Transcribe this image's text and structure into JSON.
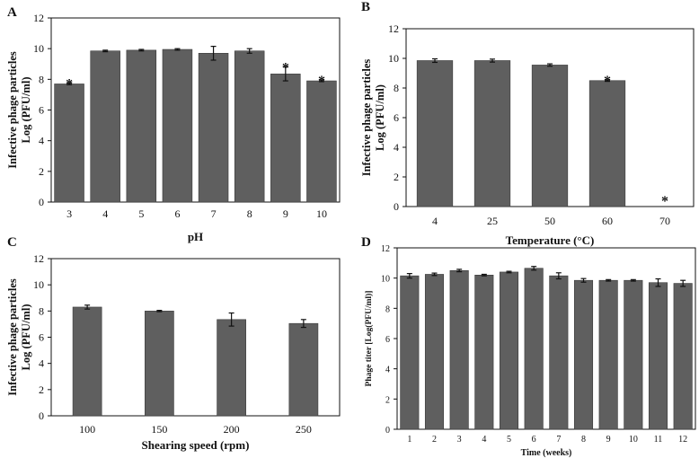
{
  "chart_data": [
    {
      "panel": "A",
      "type": "bar",
      "categories": [
        "3",
        "4",
        "5",
        "6",
        "7",
        "8",
        "9",
        "10"
      ],
      "values": [
        7.7,
        9.85,
        9.9,
        9.95,
        9.7,
        9.85,
        8.35,
        7.9
      ],
      "errors": [
        0.05,
        0.05,
        0.05,
        0.05,
        0.45,
        0.15,
        0.45,
        0.05
      ],
      "significant": [
        true,
        false,
        false,
        false,
        false,
        false,
        true,
        true
      ],
      "marker": "*",
      "title": "",
      "xlabel": "pH",
      "ylabel_lines": [
        "Infective phage particles",
        "Log (PFU/ml)"
      ],
      "ylim": [
        0,
        12
      ],
      "yticks": [
        "0",
        "2",
        "4",
        "6",
        "8",
        "10",
        "12"
      ]
    },
    {
      "panel": "B",
      "type": "bar",
      "categories": [
        "4",
        "25",
        "50",
        "60",
        "70"
      ],
      "values": [
        9.85,
        9.85,
        9.55,
        8.5,
        0
      ],
      "errors": [
        0.12,
        0.1,
        0.08,
        0.05,
        0
      ],
      "significant": [
        false,
        false,
        false,
        true,
        true
      ],
      "marker": "*",
      "title": "",
      "xlabel": "Temperature (°C)",
      "ylabel_lines": [
        "Infective phage particles",
        "Log (PFU/ml)"
      ],
      "ylim": [
        0,
        12
      ],
      "yticks": [
        "0",
        "2",
        "4",
        "6",
        "8",
        "10",
        "12"
      ]
    },
    {
      "panel": "C",
      "type": "bar",
      "categories": [
        "100",
        "150",
        "200",
        "250"
      ],
      "values": [
        8.3,
        8.0,
        7.35,
        7.05
      ],
      "errors": [
        0.15,
        0.05,
        0.5,
        0.3
      ],
      "significant": [
        false,
        false,
        false,
        false
      ],
      "marker": "*",
      "title": "",
      "xlabel": "Shearing speed (rpm)",
      "ylabel_lines": [
        "Infective phage particles",
        "Log (PFU/ml)"
      ],
      "ylim": [
        0,
        12
      ],
      "yticks": [
        "0",
        "2",
        "4",
        "6",
        "8",
        "10",
        "12"
      ]
    },
    {
      "panel": "D",
      "type": "bar",
      "categories": [
        "1",
        "2",
        "3",
        "4",
        "5",
        "6",
        "7",
        "8",
        "9",
        "10",
        "11",
        "12"
      ],
      "values": [
        10.15,
        10.25,
        10.5,
        10.2,
        10.4,
        10.65,
        10.15,
        9.85,
        9.85,
        9.85,
        9.7,
        9.65
      ],
      "errors": [
        0.15,
        0.08,
        0.08,
        0.05,
        0.05,
        0.12,
        0.2,
        0.12,
        0.05,
        0.05,
        0.25,
        0.2
      ],
      "significant": [
        false,
        false,
        false,
        false,
        false,
        false,
        false,
        false,
        false,
        false,
        false,
        false
      ],
      "marker": "*",
      "title": "",
      "xlabel": "Time (weeks)",
      "ylabel_lines": [
        "Phage titer [Log(PFU/ml)]"
      ],
      "ylim": [
        0,
        12
      ],
      "yticks": [
        "0",
        "2",
        "4",
        "6",
        "8",
        "10",
        "12"
      ]
    }
  ],
  "colors": {
    "bar": "#5f5f5f",
    "axis": "#111111"
  }
}
